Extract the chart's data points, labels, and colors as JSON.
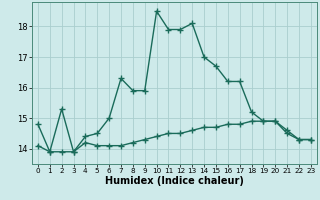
{
  "title": "",
  "xlabel": "Humidex (Indice chaleur)",
  "background_color": "#ceeaea",
  "grid_color": "#aacece",
  "line_color": "#1a6b5a",
  "x_upper": [
    0,
    1,
    2,
    3,
    4,
    5,
    6,
    7,
    8,
    9,
    10,
    11,
    12,
    13,
    14,
    15,
    16,
    17,
    18,
    19,
    20,
    21,
    22,
    23
  ],
  "y_upper": [
    14.8,
    13.9,
    15.3,
    13.9,
    14.4,
    14.5,
    15.0,
    16.3,
    15.9,
    15.9,
    18.5,
    17.9,
    17.9,
    18.1,
    17.0,
    16.7,
    16.2,
    16.2,
    15.2,
    14.9,
    14.9,
    14.6,
    14.3,
    14.3
  ],
  "x_lower": [
    0,
    1,
    2,
    3,
    4,
    5,
    6,
    7,
    8,
    9,
    10,
    11,
    12,
    13,
    14,
    15,
    16,
    17,
    18,
    19,
    20,
    21,
    22,
    23
  ],
  "y_lower": [
    14.1,
    13.9,
    13.9,
    13.9,
    14.2,
    14.1,
    14.1,
    14.1,
    14.2,
    14.3,
    14.4,
    14.5,
    14.5,
    14.6,
    14.7,
    14.7,
    14.8,
    14.8,
    14.9,
    14.9,
    14.9,
    14.5,
    14.3,
    14.3
  ],
  "ylim": [
    13.5,
    18.8
  ],
  "xlim": [
    -0.5,
    23.5
  ],
  "yticks": [
    14,
    15,
    16,
    17,
    18
  ],
  "xticks": [
    0,
    1,
    2,
    3,
    4,
    5,
    6,
    7,
    8,
    9,
    10,
    11,
    12,
    13,
    14,
    15,
    16,
    17,
    18,
    19,
    20,
    21,
    22,
    23
  ],
  "marker": "+",
  "markersize": 4,
  "linewidth": 1.0,
  "axis_fontsize": 7,
  "tick_fontsize": 6
}
